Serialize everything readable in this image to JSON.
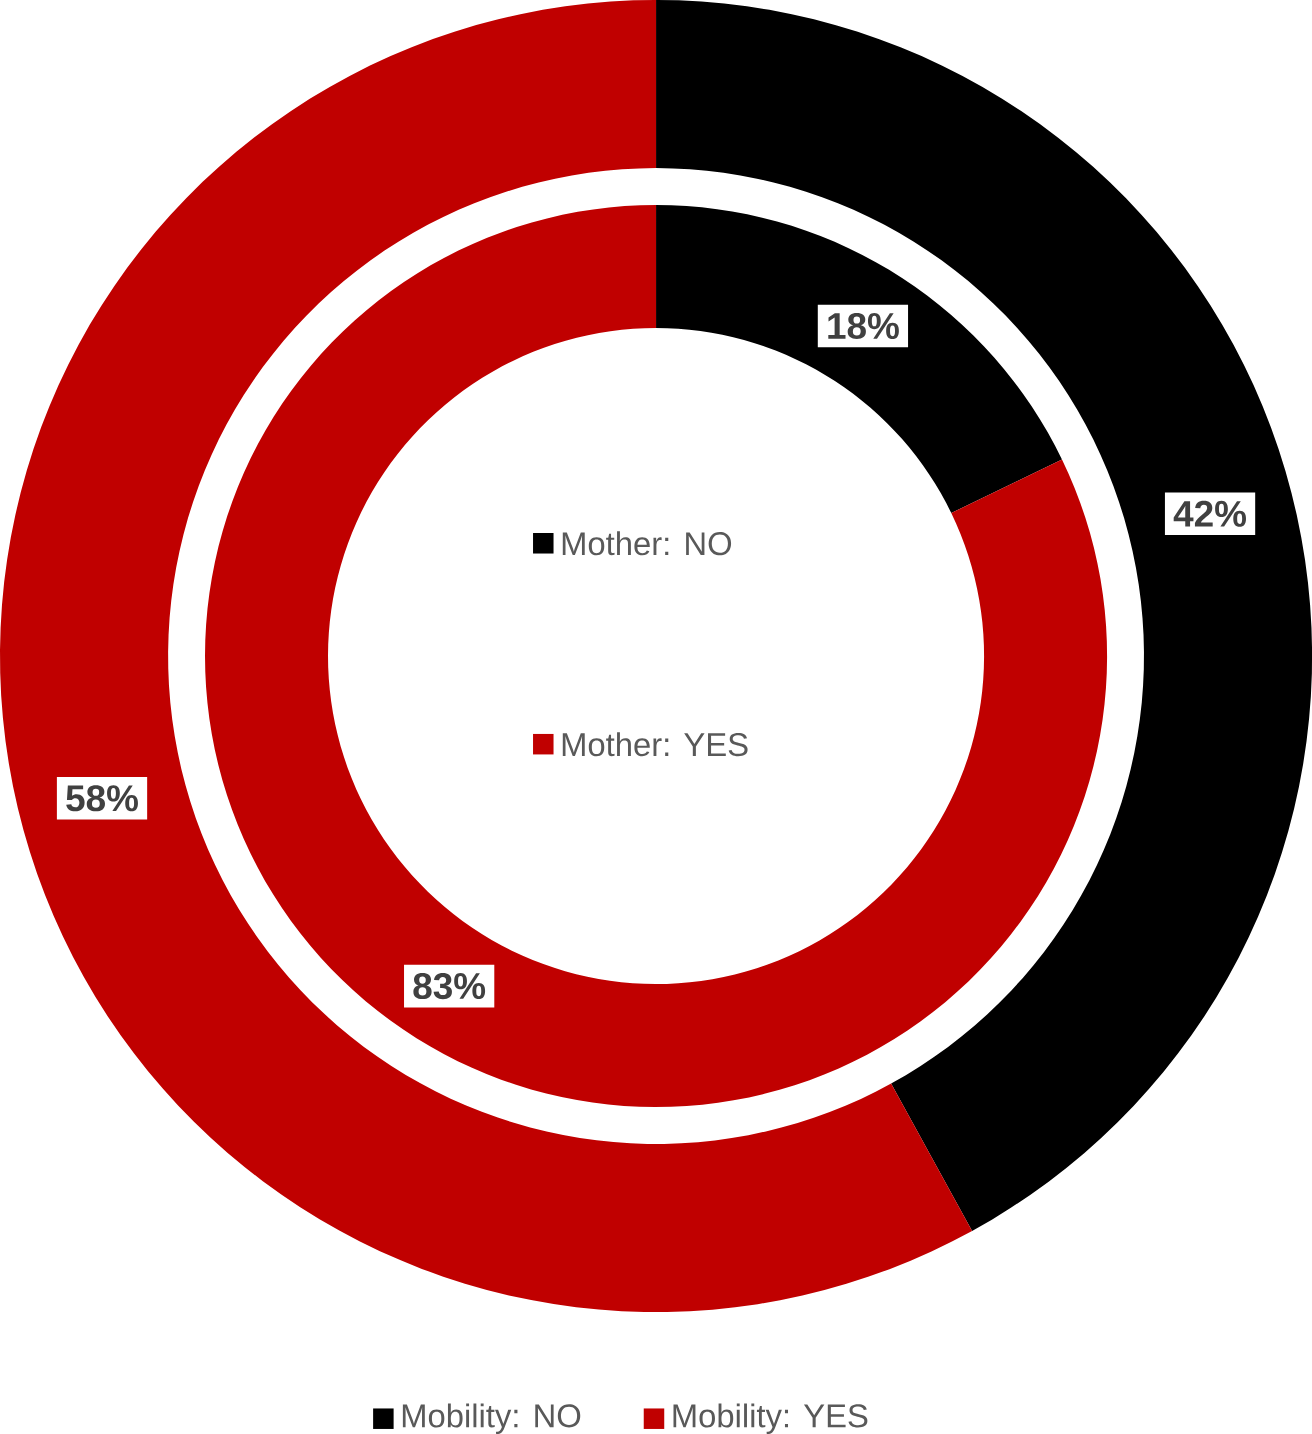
{
  "chart_data": [
    {
      "type": "donut",
      "categories": [
        "Mobility: NO",
        "Mobility: YES"
      ],
      "values": [
        42,
        58
      ],
      "colors": [
        "#000000",
        "#c00000"
      ],
      "data_labels": true,
      "value_labels": [
        "42%",
        "58%"
      ],
      "legend": "bottom"
    },
    {
      "type": "donut",
      "categories": [
        "Mother: NO",
        "Mother: YES"
      ],
      "values": [
        18,
        83
      ],
      "colors": [
        "#000000",
        "#c00000"
      ],
      "data_labels": true,
      "value_labels": [
        "18%",
        "83%"
      ],
      "legend": "center"
    }
  ]
}
